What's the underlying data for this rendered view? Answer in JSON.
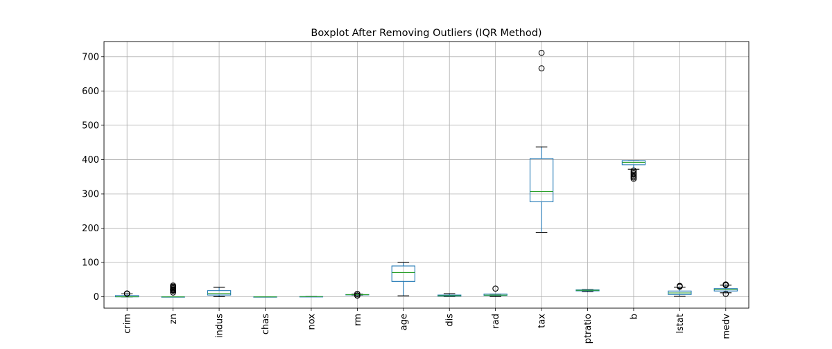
{
  "chart_data": {
    "type": "boxplot",
    "title": "Boxplot After Removing Outliers (IQR Method)",
    "xlabel": "",
    "ylabel": "",
    "ylim": [
      -33,
      744
    ],
    "yticks": [
      0,
      100,
      200,
      300,
      400,
      500,
      600,
      700
    ],
    "grid": true,
    "colors": {
      "box": "#1f77b4",
      "median": "#2ca02c",
      "whisker": "#000000",
      "grid": "#b0b0b0"
    },
    "categories": [
      "crim",
      "zn",
      "indus",
      "chas",
      "nox",
      "rm",
      "age",
      "dis",
      "rad",
      "tax",
      "ptratio",
      "b",
      "lstat",
      "medv"
    ],
    "boxes": [
      {
        "name": "crim",
        "whislo": 0.006,
        "q1": 0.08,
        "med": 0.26,
        "q3": 3.6,
        "whishi": 8.9,
        "fliers": [
          9.0,
          9.3,
          9.9
        ]
      },
      {
        "name": "zn",
        "whislo": 0,
        "q1": 0,
        "med": 0,
        "q3": 0,
        "whishi": 0,
        "fliers": [
          12.5,
          17.5,
          20,
          21,
          22,
          25,
          28,
          30,
          33
        ]
      },
      {
        "name": "indus",
        "whislo": 0.46,
        "q1": 5.2,
        "med": 9.7,
        "q3": 18.1,
        "whishi": 27.7,
        "fliers": []
      },
      {
        "name": "chas",
        "whislo": 0,
        "q1": 0,
        "med": 0,
        "q3": 0,
        "whishi": 0,
        "fliers": []
      },
      {
        "name": "nox",
        "whislo": 0.39,
        "q1": 0.45,
        "med": 0.54,
        "q3": 0.62,
        "whishi": 0.87,
        "fliers": []
      },
      {
        "name": "rm",
        "whislo": 4.9,
        "q1": 5.89,
        "med": 6.2,
        "q3": 6.6,
        "whishi": 7.7,
        "fliers": [
          3.6,
          4.1,
          8.3,
          8.7
        ]
      },
      {
        "name": "age",
        "whislo": 2.9,
        "q1": 45,
        "med": 71,
        "q3": 90,
        "whishi": 100,
        "fliers": []
      },
      {
        "name": "dis",
        "whislo": 1.13,
        "q1": 2.1,
        "med": 3.2,
        "q3": 5.2,
        "whishi": 9.2,
        "fliers": []
      },
      {
        "name": "rad",
        "whislo": 1,
        "q1": 4,
        "med": 5,
        "q3": 8,
        "whishi": 8,
        "fliers": [
          24
        ]
      },
      {
        "name": "tax",
        "whislo": 188,
        "q1": 277,
        "med": 307,
        "q3": 403,
        "whishi": 437,
        "fliers": [
          666,
          711
        ]
      },
      {
        "name": "ptratio",
        "whislo": 14.7,
        "q1": 17.4,
        "med": 19.1,
        "q3": 20.2,
        "whishi": 21.2,
        "fliers": []
      },
      {
        "name": "b",
        "whislo": 372,
        "q1": 385,
        "med": 392,
        "q3": 396.9,
        "whishi": 396.9,
        "fliers": [
          344,
          348,
          352,
          356,
          360,
          364,
          368
        ]
      },
      {
        "name": "lstat",
        "whislo": 1.7,
        "q1": 6.9,
        "med": 11.4,
        "q3": 16.9,
        "whishi": 28,
        "fliers": [
          29.5,
          30.6,
          31.9
        ]
      },
      {
        "name": "medv",
        "whislo": 11.8,
        "q1": 17,
        "med": 21,
        "q3": 24,
        "whishi": 34,
        "fliers": [
          8.5,
          33.8,
          35,
          36.2
        ]
      }
    ]
  }
}
